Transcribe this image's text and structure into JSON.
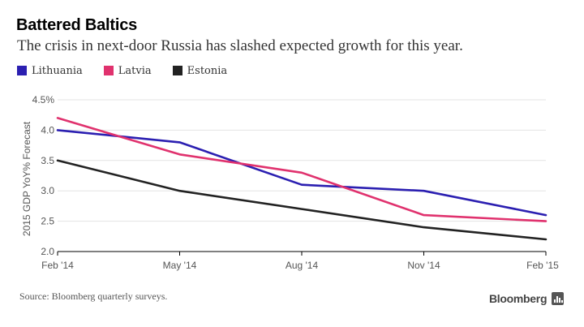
{
  "header": {
    "title": "Battered Baltics",
    "subtitle": "The crisis in next-door Russia has slashed expected growth for this year."
  },
  "legend": [
    {
      "label": "Lithuania",
      "color": "#2b1fb1"
    },
    {
      "label": "Latvia",
      "color": "#e0326e"
    },
    {
      "label": "Estonia",
      "color": "#222222"
    }
  ],
  "footer": {
    "source": "Source: Bloomberg quarterly surveys.",
    "brand": "Bloomberg"
  },
  "chart_data": {
    "type": "line",
    "title": "Battered Baltics",
    "subtitle": "The crisis in next-door Russia has slashed expected growth for this year.",
    "xlabel": "",
    "ylabel": "2015 GDP YoY% Forecast",
    "x": [
      "Feb '14",
      "May '14",
      "Aug '14",
      "Nov '14",
      "Feb '15"
    ],
    "ylim": [
      2.0,
      4.5
    ],
    "yticks": [
      "2.0",
      "2.5",
      "3.0",
      "3.5",
      "4.0",
      "4.5%"
    ],
    "grid": true,
    "legend_position": "top-left",
    "series": [
      {
        "name": "Lithuania",
        "color": "#2b1fb1",
        "values": [
          4.0,
          3.8,
          3.1,
          3.0,
          2.6
        ]
      },
      {
        "name": "Latvia",
        "color": "#e0326e",
        "values": [
          4.2,
          3.6,
          3.3,
          2.6,
          2.5
        ]
      },
      {
        "name": "Estonia",
        "color": "#222222",
        "values": [
          3.5,
          3.0,
          2.7,
          2.4,
          2.2
        ]
      }
    ]
  }
}
